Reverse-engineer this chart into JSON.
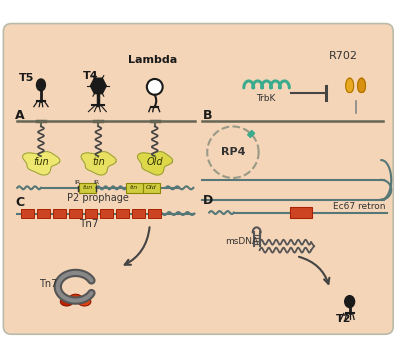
{
  "bg_color": "#f5d5b8",
  "bg_outer": "#ffffff",
  "cell_bg": "#f5d5b8",
  "dark": "#1a1a1a",
  "teal": "#3aab8c",
  "orange_red": "#cc4422",
  "gold": "#d4a020",
  "gray": "#808080",
  "light_yellow": "#eee870",
  "dark_yellow": "#d0c840",
  "label_A": "A",
  "label_B": "B",
  "label_C": "C",
  "label_D": "D",
  "phage_T5": "T5",
  "phage_T4": "T4",
  "phage_Lambda": "Lambda",
  "plasmid_R702": "R702",
  "plasmid_RP4": "RP4",
  "TrbK": "TrbK",
  "P2_prophage": "P2 prophage",
  "Tn7": "Tn7",
  "Ec67": "Ec67 retron",
  "msDNA": "msDNA",
  "T2": "T2",
  "fun": "fun",
  "tin": "tin",
  "Old": "Old"
}
